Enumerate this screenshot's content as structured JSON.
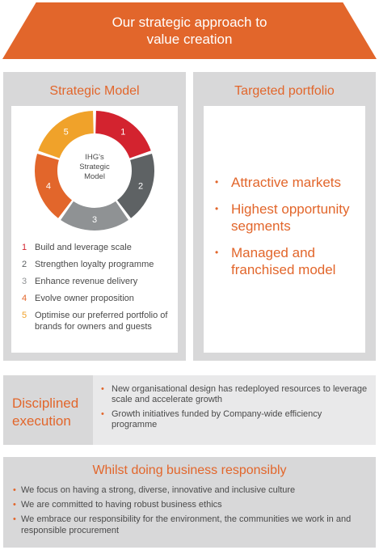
{
  "header": {
    "title_line1": "Our strategic approach to",
    "title_line2": "value creation"
  },
  "strategic_model": {
    "title": "Strategic Model",
    "center_lines": [
      "IHG's",
      "Strategic",
      "Model"
    ],
    "segments": [
      {
        "num": "1",
        "color": "#d3232f"
      },
      {
        "num": "2",
        "color": "#5e6264"
      },
      {
        "num": "3",
        "color": "#8f9294"
      },
      {
        "num": "4",
        "color": "#e2662b"
      },
      {
        "num": "5",
        "color": "#f0a22a"
      }
    ],
    "items": [
      {
        "num": "1",
        "text": "Build and leverage scale",
        "color": "#d3232f"
      },
      {
        "num": "2",
        "text": "Strengthen loyalty programme",
        "color": "#5e6264"
      },
      {
        "num": "3",
        "text": "Enhance revenue delivery",
        "color": "#8f9294"
      },
      {
        "num": "4",
        "text": "Evolve owner proposition",
        "color": "#e2662b"
      },
      {
        "num": "5",
        "text": "Optimise our preferred portfolio of brands for owners and guests",
        "color": "#f0a22a"
      }
    ]
  },
  "targeted_portfolio": {
    "title": "Targeted portfolio",
    "bullet": "•",
    "items": [
      "Attractive markets",
      "Highest opportunity segments",
      "Managed and franchised model"
    ]
  },
  "disciplined_execution": {
    "title_line1": "Disciplined",
    "title_line2": "execution",
    "bullet": "•",
    "items": [
      "New organisational design has redeployed resources to leverage scale and accelerate growth",
      "Growth initiatives funded by Company-wide efficiency programme"
    ]
  },
  "responsibility": {
    "title": "Whilst doing business responsibly",
    "bullet": "•",
    "items": [
      "We focus on having a strong, diverse, innovative and inclusive culture",
      "We are committed to having robust business ethics",
      "We embrace our responsibility for the environment, the communities we work in and responsible procurement"
    ]
  },
  "colors": {
    "accent": "#e2662b",
    "panel": "#d8d8d9"
  }
}
